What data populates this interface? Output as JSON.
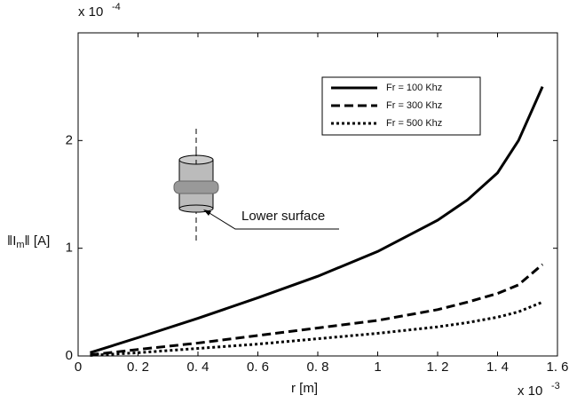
{
  "chart_data": {
    "type": "line",
    "x_exponent_base": "x 10",
    "x_exponent": "-3",
    "y_exponent_base": "x 10",
    "y_exponent": "-4",
    "xlabel": "r [m]",
    "ylabel": "‖I",
    "ylabel_sub": "m",
    "ylabel_end": "‖ [A]",
    "annotation": "Lower surface",
    "x": [
      0.04,
      0.2,
      0.4,
      0.6,
      0.8,
      1.0,
      1.2,
      1.3,
      1.4,
      1.47,
      1.55
    ],
    "series": [
      {
        "name": "Fr = 100 Khz",
        "color": "#000000",
        "style": "solid",
        "values": [
          0.03,
          0.17,
          0.35,
          0.54,
          0.74,
          0.97,
          1.26,
          1.45,
          1.7,
          2.0,
          2.5
        ]
      },
      {
        "name": "Fr = 300 Khz",
        "color": "#000000",
        "style": "dashed",
        "values": [
          0.01,
          0.06,
          0.12,
          0.19,
          0.26,
          0.33,
          0.43,
          0.5,
          0.58,
          0.66,
          0.85
        ]
      },
      {
        "name": "Fr = 500 Khz",
        "color": "#000000",
        "style": "dotted",
        "values": [
          0.005,
          0.03,
          0.07,
          0.11,
          0.16,
          0.21,
          0.27,
          0.31,
          0.36,
          0.41,
          0.5
        ]
      }
    ],
    "xlim": [
      0,
      1.6
    ],
    "xticks": [
      0,
      {
        "value": 0.2,
        "label": "0. 2"
      },
      {
        "value": 0.4,
        "label": "0. 4"
      },
      {
        "value": 0.6,
        "label": "0. 6"
      },
      {
        "value": 0.8,
        "label": "0. 8"
      },
      1,
      {
        "value": 1.2,
        "label": "1. 2"
      },
      {
        "value": 1.4,
        "label": "1. 4"
      },
      {
        "value": 1.6,
        "label": "1. 6"
      }
    ],
    "ylim": [
      0,
      3
    ],
    "yticks": [
      0,
      1,
      2
    ],
    "grid": false,
    "legend": "upper right"
  }
}
